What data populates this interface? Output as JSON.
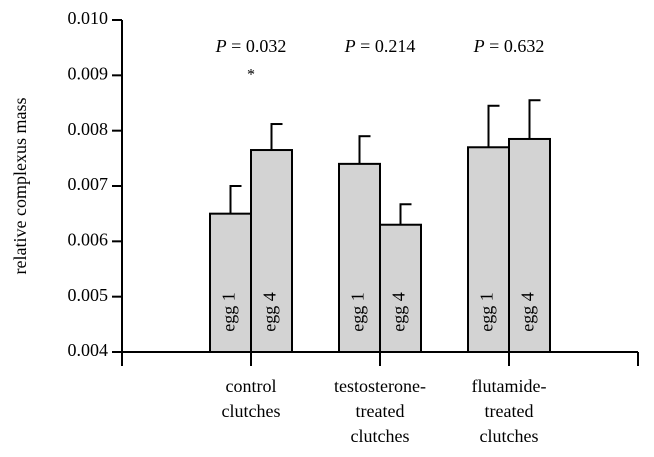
{
  "chart_data": {
    "type": "bar",
    "y_label": "relative complexus mass",
    "categories": [
      [
        "control",
        "clutches"
      ],
      [
        "testosterone-",
        "treated",
        "clutches"
      ],
      [
        "flutamide-",
        "treated",
        "clutches"
      ]
    ],
    "series": [
      {
        "name": "egg 1",
        "color": "#d3d3d3",
        "values": [
          0.0065,
          0.0074,
          0.0077
        ],
        "errors": [
          0.0005,
          0.0005,
          0.00075
        ]
      },
      {
        "name": "egg 4",
        "color": "#d3d3d3",
        "values": [
          0.00765,
          0.0063,
          0.00785
        ],
        "errors": [
          0.00047,
          0.00037,
          0.0007
        ]
      }
    ],
    "annotations": [
      {
        "symbol": "P",
        "text": "= 0.032",
        "mark": "*"
      },
      {
        "symbol": "P",
        "text": "= 0.214"
      },
      {
        "symbol": "P",
        "text": "= 0.632"
      }
    ],
    "ylim": [
      0.004,
      0.01
    ],
    "yticks": [
      0.004,
      0.005,
      0.006,
      0.007,
      0.008,
      0.009,
      {
        "value": 0.01,
        "label": "0.010"
      }
    ]
  }
}
